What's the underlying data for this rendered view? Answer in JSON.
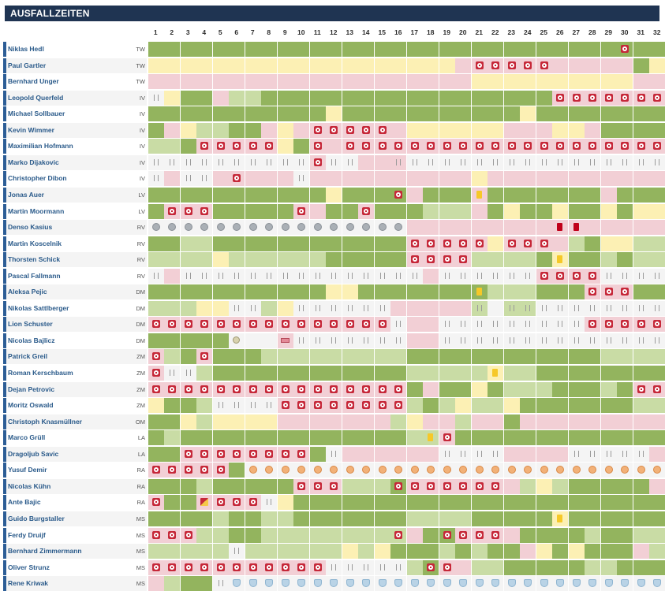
{
  "title": "AUSFALLZEITEN",
  "days": [
    "1",
    "2",
    "3",
    "4",
    "5",
    "6",
    "7",
    "8",
    "9",
    "10",
    "11",
    "12",
    "13",
    "14",
    "15",
    "16",
    "17",
    "18",
    "19",
    "20",
    "21",
    "22",
    "23",
    "24",
    "25",
    "26",
    "27",
    "28",
    "29",
    "30",
    "31",
    "32"
  ],
  "legend_colors": {
    "green": "#93b45e",
    "lightgreen": "#c9dca5",
    "yellow": "#fcf0b4",
    "pink": "#f2cfd5",
    "gray": "#f4f4f4",
    "injury": "#c62839",
    "header": "#1f3452"
  },
  "players": [
    {
      "name": "Niklas Hedl",
      "pos": "TW",
      "cells": "GGGGGGGGGGGGGGGGGGGGGGGGGGGGGGGG",
      "icons": {
        "30": "injury"
      }
    },
    {
      "name": "Paul Gartler",
      "pos": "TW",
      "cells": "YYYYYYYYYYYYYYYYYYYPPPPPPPPPPPGY",
      "icons": {
        "21": "injury",
        "22": "injury",
        "23": "injury",
        "24": "injury",
        "25": "injury"
      }
    },
    {
      "name": "Bernhard Unger",
      "pos": "TW",
      "cells": "PPPPPPPPPPPPPPPPPPPPYYYYYYYYYYPP",
      "icons": {}
    },
    {
      "name": "Leopold Querfeld",
      "pos": "IV",
      "cells": "WYGGPLLGGGGGGGGGGGGGGGGGGPPPPPPP",
      "icons": {
        "1": "bench",
        "26": "injury",
        "27": "injury",
        "28": "injury",
        "29": "injury",
        "30": "injury",
        "31": "injury",
        "32": "injury"
      }
    },
    {
      "name": "Michael Sollbauer",
      "pos": "IV",
      "cells": "GGGGGGGGGGGYGGGGGGGGGGGYGGGGGGGG",
      "icons": {}
    },
    {
      "name": "Kevin Wimmer",
      "pos": "IV",
      "cells": "GPYLLGGPYPPPPPPPYYYYYYPPPYYPGGGG",
      "icons": {
        "11": "injury",
        "12": "injury",
        "13": "injury",
        "14": "injury",
        "15": "injury"
      }
    },
    {
      "name": "Maximilian Hofmann",
      "pos": "IV",
      "cells": "LLGPPPPPYGPPPPPPPPPPPPPPPPPPPPPP",
      "icons": {
        "4": "injury",
        "5": "injury",
        "6": "injury",
        "7": "injury",
        "8": "injury",
        "11": "injury",
        "13": "injury",
        "14": "injury",
        "15": "injury",
        "16": "injury",
        "17": "injury",
        "18": "injury",
        "19": "injury",
        "20": "injury",
        "21": "injury",
        "22": "injury",
        "23": "injury",
        "24": "injury",
        "25": "injury",
        "26": "injury",
        "27": "injury",
        "28": "injury",
        "29": "injury",
        "30": "injury",
        "31": "injury",
        "32": "injury"
      }
    },
    {
      "name": "Marko Dijakovic",
      "pos": "IV",
      "cells": "WWWWWWWWWWPWWPPPWWWWWWWWWWWWWWWW",
      "icons": {
        "1": "bench",
        "2": "bench",
        "3": "bench",
        "4": "bench",
        "5": "bench",
        "6": "bench",
        "7": "bench",
        "8": "bench",
        "9": "bench",
        "10": "bench",
        "11": "injury",
        "12": "bench",
        "13": "bench",
        "16": "bench",
        "17": "bench",
        "18": "bench",
        "19": "bench",
        "20": "bench",
        "21": "bench",
        "22": "bench",
        "23": "bench",
        "24": "bench",
        "25": "bench",
        "26": "bench",
        "27": "bench",
        "28": "bench",
        "29": "bench",
        "30": "bench",
        "31": "bench",
        "32": "bench"
      }
    },
    {
      "name": "Christopher Dibon",
      "pos": "IV",
      "cells": "WPWWPPPPPWPPPPPPPPPPYPPPPPPPPPPP",
      "icons": {
        "1": "bench",
        "3": "bench",
        "4": "bench",
        "6": "injury",
        "10": "bench"
      }
    },
    {
      "name": "Jonas Auer",
      "pos": "LV",
      "cells": "GGGGGGGGGGGYGGGGPGGGPGGGGGGGPGGG",
      "icons": {
        "16": "injury",
        "21": "yellow"
      }
    },
    {
      "name": "Martin Moormann",
      "pos": "LV",
      "cells": "GPPPGGGGGPPGGPGGGLLLPGYGGYGGYGYY",
      "icons": {
        "2": "injury",
        "3": "injury",
        "4": "injury",
        "10": "injury",
        "14": "injury"
      }
    },
    {
      "name": "Denso Kasius",
      "pos": "RV",
      "cells": "WWWWWWWWWWWWWWWWPPPPPPPPPPPPPPPP",
      "icons": {
        "1": "bubble",
        "2": "bubble",
        "3": "bubble",
        "4": "bubble",
        "5": "bubble",
        "6": "bubble",
        "7": "bubble",
        "8": "bubble",
        "9": "bubble",
        "10": "bubble",
        "11": "bubble",
        "12": "bubble",
        "13": "bubble",
        "14": "bubble",
        "15": "bubble",
        "16": "bubble",
        "26": "red",
        "27": "red"
      }
    },
    {
      "name": "Martin Koscelnik",
      "pos": "RV",
      "cells": "GGLLGGGGGGGGGGGGPPPPPYPPPPLGYYLL",
      "icons": {
        "17": "injury",
        "18": "injury",
        "19": "injury",
        "20": "injury",
        "21": "injury",
        "23": "injury",
        "24": "injury",
        "25": "injury"
      }
    },
    {
      "name": "Thorsten Schick",
      "pos": "RV",
      "cells": "LLLLYLLLLLLGGGGGPPPPLLLLGYGGLGLL",
      "icons": {
        "17": "injury",
        "18": "injury",
        "19": "injury",
        "20": "injury",
        "26": "yellow"
      }
    },
    {
      "name": "Pascal Fallmann",
      "pos": "RV",
      "cells": "WPWWWWWWWWWWWWWWWPWWWWWWPPPPWWWW",
      "icons": {
        "1": "bench",
        "3": "bench",
        "4": "bench",
        "5": "bench",
        "6": "bench",
        "7": "bench",
        "8": "bench",
        "9": "bench",
        "10": "bench",
        "11": "bench",
        "12": "bench",
        "13": "bench",
        "14": "bench",
        "15": "bench",
        "16": "bench",
        "17": "bench",
        "19": "bench",
        "20": "bench",
        "21": "bench",
        "22": "bench",
        "23": "bench",
        "24": "bench",
        "25": "injury",
        "26": "injury",
        "27": "injury",
        "28": "injury",
        "29": "bench",
        "30": "bench",
        "31": "bench",
        "32": "bench"
      }
    },
    {
      "name": "Aleksa Pejic",
      "pos": "DM",
      "cells": "GGGGGGGGGGGYYGGGGGGGGLLLGGGPPPGG",
      "icons": {
        "21": "yellow",
        "28": "injury",
        "29": "injury",
        "30": "injury"
      }
    },
    {
      "name": "Nikolas Sattlberger",
      "pos": "DM",
      "cells": "LLLYYWWLYWWWWWWPPPPPLWLLWWWWWWWW",
      "icons": {
        "6": "bench",
        "7": "bench",
        "10": "bench",
        "11": "bench",
        "12": "bench",
        "13": "bench",
        "14": "bench",
        "15": "bench",
        "21": "bench",
        "23": "bench",
        "24": "bench",
        "25": "bench",
        "26": "bench",
        "27": "bench",
        "28": "bench",
        "29": "bench",
        "30": "bench",
        "31": "bench",
        "32": "bench"
      }
    },
    {
      "name": "Lion Schuster",
      "pos": "DM",
      "cells": "PPPPPPPPPPPPPPPWPPWWWWWWWWWPPPPP",
      "icons": {
        "1": "injury",
        "2": "injury",
        "3": "injury",
        "4": "injury",
        "5": "injury",
        "6": "injury",
        "7": "injury",
        "8": "injury",
        "9": "injury",
        "10": "injury",
        "11": "injury",
        "12": "injury",
        "13": "injury",
        "14": "injury",
        "15": "injury",
        "16": "bench",
        "19": "bench",
        "20": "bench",
        "21": "bench",
        "22": "bench",
        "23": "bench",
        "24": "bench",
        "25": "bench",
        "26": "bench",
        "27": "bench",
        "28": "injury",
        "29": "injury",
        "30": "injury",
        "31": "injury",
        "32": "injury"
      }
    },
    {
      "name": "Nicolas Bajlicz",
      "pos": "DM",
      "cells": "GGGGGWWWPWWWWWWWPPWWWWWWWWWWWWWW",
      "icons": {
        "6": "ball",
        "9": "strip",
        "10": "bench",
        "11": "bench",
        "12": "bench",
        "13": "bench",
        "14": "bench",
        "15": "bench",
        "16": "bench",
        "19": "bench",
        "20": "bench",
        "21": "bench",
        "22": "bench",
        "23": "bench",
        "24": "bench",
        "25": "bench",
        "26": "bench",
        "27": "bench",
        "28": "bench",
        "29": "bench",
        "30": "bench",
        "31": "bench",
        "32": "bench"
      }
    },
    {
      "name": "Patrick Greil",
      "pos": "ZM",
      "cells": "PLGPGGGLLLLLLLLLGGGGGGGGGGGGLLLL",
      "icons": {
        "1": "injury",
        "4": "injury"
      }
    },
    {
      "name": "Roman Kerschbaum",
      "pos": "ZM",
      "cells": "PWWLGGGGGGGGGGGGLLLLLYLLGGGGGGGG",
      "icons": {
        "1": "injury",
        "2": "bench",
        "3": "bench",
        "22": "yellow"
      }
    },
    {
      "name": "Dejan Petrovic",
      "pos": "ZM",
      "cells": "PPPPPPPPPPPPPPPPGPGGYGLLLGGGLGPP",
      "icons": {
        "1": "injury",
        "2": "injury",
        "3": "injury",
        "4": "injury",
        "5": "injury",
        "6": "injury",
        "7": "injury",
        "8": "injury",
        "9": "injury",
        "10": "injury",
        "11": "injury",
        "12": "injury",
        "13": "injury",
        "14": "injury",
        "15": "injury",
        "16": "injury",
        "31": "injury",
        "32": "injury"
      }
    },
    {
      "name": "Moritz Oswald",
      "pos": "ZM",
      "cells": "YGGLWWWWPPPPPPPPLGLYLLYGGGGGGGLL",
      "icons": {
        "5": "bench",
        "6": "bench",
        "7": "bench",
        "8": "bench",
        "9": "injury",
        "10": "injury",
        "11": "injury",
        "12": "injury",
        "13": "injury",
        "14": "injury",
        "15": "injury",
        "16": "injury"
      }
    },
    {
      "name": "Christoph Knasmüllner",
      "pos": "OM",
      "cells": "GGYLYYYYPPPPPPPLYPPLPPGPPPPPPPPP",
      "icons": {}
    },
    {
      "name": "Marco Grüll",
      "pos": "LA",
      "cells": "GLGGGGGGGGGGGGGGLLPGGGGGGGGGGGGG",
      "icons": {
        "18": "yellow",
        "19": "injury"
      }
    },
    {
      "name": "Dragoljub Savic",
      "pos": "LA",
      "cells": "GGPPPPPPPPGWPPPPPPWWWWPPPPWWWWWP",
      "icons": {
        "3": "injury",
        "4": "injury",
        "5": "injury",
        "6": "injury",
        "7": "injury",
        "8": "injury",
        "9": "injury",
        "10": "injury",
        "12": "bench",
        "19": "bench",
        "20": "bench",
        "21": "bench",
        "22": "bench",
        "27": "bench",
        "28": "bench",
        "29": "bench",
        "30": "bench",
        "31": "bench"
      }
    },
    {
      "name": "Yusuf Demir",
      "pos": "RA",
      "cells": "PPPPPGWWWWWWWWWWWWWWWWWWWWWWWWWW",
      "icons": {
        "1": "injury",
        "2": "injury",
        "3": "injury",
        "4": "injury",
        "5": "injury",
        "7": "badge",
        "8": "badge",
        "9": "badge",
        "10": "badge",
        "11": "badge",
        "12": "badge",
        "13": "badge",
        "14": "badge",
        "15": "badge",
        "16": "badge",
        "17": "badge",
        "18": "badge",
        "19": "badge",
        "20": "badge",
        "21": "badge",
        "22": "badge",
        "23": "badge",
        "24": "badge",
        "25": "badge",
        "26": "badge",
        "27": "badge",
        "28": "badge",
        "29": "badge",
        "30": "badge",
        "31": "badge",
        "32": "badge"
      }
    },
    {
      "name": "Nicolas Kühn",
      "pos": "RA",
      "cells": "GGGLGGGGGPPPLLLGPPPPPPPLYLGGGGGP",
      "icons": {
        "10": "injury",
        "11": "injury",
        "12": "injury",
        "16": "injury",
        "17": "injury",
        "18": "injury",
        "19": "injury",
        "20": "injury",
        "21": "injury",
        "22": "injury"
      }
    },
    {
      "name": "Ante Bajic",
      "pos": "RA",
      "cells": "PGGPPPPWYGGGGGGGGGGGGGGGGGGGGGGG",
      "icons": {
        "1": "injury",
        "4": "half",
        "5": "injury",
        "6": "injury",
        "7": "injury",
        "8": "bench"
      }
    },
    {
      "name": "Guido Burgstaller",
      "pos": "MS",
      "cells": "GGGGLGGLLGGGGGGGLLLLGGGGGYGGGGGG",
      "icons": {
        "26": "yellow"
      }
    },
    {
      "name": "Ferdy Druijf",
      "pos": "MS",
      "cells": "PPPLLGGLLLLLLLLLPGGPPPPGGGGLGGLL",
      "icons": {
        "1": "injury",
        "2": "injury",
        "3": "injury",
        "16": "injury",
        "19": "injury",
        "20": "injury",
        "21": "injury",
        "22": "injury"
      }
    },
    {
      "name": "Bernhard Zimmermann",
      "pos": "MS",
      "cells": "LLLLLWLLLLLLYLYGGGLGLGGPYGYGGGPL",
      "icons": {
        "6": "bench"
      }
    },
    {
      "name": "Oliver Strunz",
      "pos": "MS",
      "cells": "PPPPPPPPPPPWWWWWLGPPLLGGGGGLLGGG",
      "icons": {
        "1": "injury",
        "2": "injury",
        "3": "injury",
        "4": "injury",
        "5": "injury",
        "6": "injury",
        "7": "injury",
        "8": "injury",
        "9": "injury",
        "10": "injury",
        "11": "injury",
        "12": "bench",
        "13": "bench",
        "14": "bench",
        "15": "bench",
        "16": "bench",
        "18": "injury",
        "19": "injury"
      }
    },
    {
      "name": "Rene Kriwak",
      "pos": "MS",
      "cells": "PLGGWWWWWWWWWWWWWWWWWWWWWWWWWWWW",
      "icons": {
        "5": "bench",
        "6": "shield",
        "7": "shield",
        "8": "shield",
        "9": "shield",
        "10": "shield",
        "11": "shield",
        "12": "shield",
        "13": "shield",
        "14": "shield",
        "15": "shield",
        "16": "shield",
        "17": "shield",
        "18": "shield",
        "19": "shield",
        "20": "shield",
        "21": "shield",
        "22": "shield",
        "23": "shield",
        "24": "shield",
        "25": "shield",
        "26": "shield",
        "27": "shield",
        "28": "shield",
        "29": "shield",
        "30": "shield",
        "31": "shield",
        "32": "shield"
      }
    }
  ]
}
